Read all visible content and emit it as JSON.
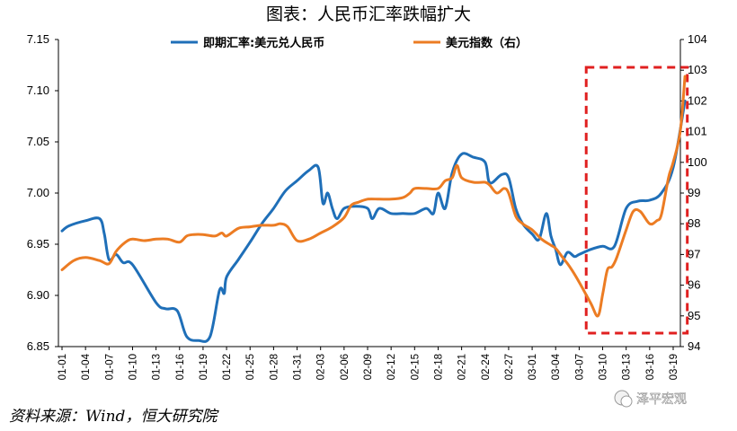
{
  "chart_data": {
    "type": "line",
    "title": "图表：人民币汇率跌幅扩大",
    "source": "资料来源：Wind，恒大研究院",
    "watermark": "泽平宏观",
    "x_labels": [
      "01-01",
      "01-04",
      "01-07",
      "01-10",
      "01-13",
      "01-16",
      "01-19",
      "01-22",
      "01-25",
      "01-28",
      "01-31",
      "02-03",
      "02-06",
      "02-09",
      "02-12",
      "02-15",
      "02-18",
      "02-21",
      "02-24",
      "02-27",
      "03-01",
      "03-04",
      "03-07",
      "03-10",
      "03-13",
      "03-16",
      "03-19"
    ],
    "y_left": {
      "min": 6.85,
      "max": 7.15,
      "ticks": [
        "6.85",
        "6.90",
        "6.95",
        "7.00",
        "7.05",
        "7.10",
        "7.15"
      ]
    },
    "y_right": {
      "min": 94,
      "max": 104,
      "ticks": [
        "94",
        "95",
        "96",
        "97",
        "98",
        "99",
        "100",
        "101",
        "102",
        "103",
        "104"
      ]
    },
    "series": [
      {
        "name": "即期汇率:美元兑人民币",
        "axis": "left",
        "color": "#1f6fb8",
        "points": [
          [
            0,
            6.963
          ],
          [
            0.3,
            6.968
          ],
          [
            1,
            6.973
          ],
          [
            1.6,
            6.975
          ],
          [
            1.8,
            6.96
          ],
          [
            2,
            6.935
          ],
          [
            2.3,
            6.94
          ],
          [
            2.6,
            6.932
          ],
          [
            3,
            6.93
          ],
          [
            4,
            6.893
          ],
          [
            4.4,
            6.887
          ],
          [
            4.9,
            6.885
          ],
          [
            5.3,
            6.86
          ],
          [
            5.8,
            6.856
          ],
          [
            6.3,
            6.86
          ],
          [
            6.7,
            6.905
          ],
          [
            6.9,
            6.902
          ],
          [
            7,
            6.918
          ],
          [
            7.5,
            6.935
          ],
          [
            8,
            6.952
          ],
          [
            8.5,
            6.97
          ],
          [
            9,
            6.985
          ],
          [
            9.5,
            7.002
          ],
          [
            10,
            7.012
          ],
          [
            10.5,
            7.022
          ],
          [
            10.9,
            7.025
          ],
          [
            11.1,
            6.99
          ],
          [
            11.3,
            7.0
          ],
          [
            11.5,
            6.985
          ],
          [
            11.7,
            6.975
          ],
          [
            12,
            6.985
          ],
          [
            12.5,
            6.987
          ],
          [
            13,
            6.985
          ],
          [
            13.2,
            6.975
          ],
          [
            13.5,
            6.985
          ],
          [
            14,
            6.98
          ],
          [
            14.5,
            6.98
          ],
          [
            15,
            6.98
          ],
          [
            15.5,
            6.985
          ],
          [
            15.8,
            6.98
          ],
          [
            16,
            7.0
          ],
          [
            16.3,
            6.985
          ],
          [
            16.6,
            7.02
          ],
          [
            17,
            7.038
          ],
          [
            17.5,
            7.035
          ],
          [
            18,
            7.03
          ],
          [
            18.2,
            7.01
          ],
          [
            18.7,
            7.018
          ],
          [
            19,
            7.015
          ],
          [
            19.3,
            6.985
          ],
          [
            19.6,
            6.97
          ],
          [
            20,
            6.96
          ],
          [
            20.3,
            6.955
          ],
          [
            20.6,
            6.98
          ],
          [
            20.8,
            6.958
          ],
          [
            21,
            6.945
          ],
          [
            21.2,
            6.93
          ],
          [
            21.5,
            6.942
          ],
          [
            21.8,
            6.938
          ],
          [
            22,
            6.94
          ],
          [
            22.5,
            6.945
          ],
          [
            23,
            6.948
          ],
          [
            23.5,
            6.948
          ],
          [
            24,
            6.985
          ],
          [
            24.5,
            6.992
          ],
          [
            25,
            6.993
          ],
          [
            25.5,
            7.0
          ],
          [
            26,
            7.025
          ],
          [
            26.5,
            7.09
          ]
        ]
      },
      {
        "name": "美元指数（右）",
        "axis": "right",
        "color": "#ec7c23",
        "points": [
          [
            0,
            96.5
          ],
          [
            0.5,
            96.8
          ],
          [
            1,
            96.9
          ],
          [
            1.6,
            96.8
          ],
          [
            2,
            96.7
          ],
          [
            2.3,
            97.1
          ],
          [
            2.7,
            97.4
          ],
          [
            3,
            97.5
          ],
          [
            3.5,
            97.45
          ],
          [
            4,
            97.5
          ],
          [
            4.5,
            97.5
          ],
          [
            5,
            97.4
          ],
          [
            5.3,
            97.6
          ],
          [
            5.6,
            97.65
          ],
          [
            6,
            97.65
          ],
          [
            6.5,
            97.6
          ],
          [
            6.8,
            97.7
          ],
          [
            7,
            97.6
          ],
          [
            7.5,
            97.85
          ],
          [
            8,
            97.9
          ],
          [
            8.5,
            97.95
          ],
          [
            9,
            97.95
          ],
          [
            9.3,
            98.0
          ],
          [
            9.6,
            97.9
          ],
          [
            10,
            97.45
          ],
          [
            10.5,
            97.5
          ],
          [
            11,
            97.7
          ],
          [
            11.5,
            97.9
          ],
          [
            12,
            98.2
          ],
          [
            12.3,
            98.6
          ],
          [
            12.6,
            98.7
          ],
          [
            13,
            98.8
          ],
          [
            13.5,
            98.8
          ],
          [
            14,
            98.8
          ],
          [
            14.5,
            98.85
          ],
          [
            14.8,
            99.0
          ],
          [
            15,
            99.15
          ],
          [
            15.5,
            99.15
          ],
          [
            16,
            99.15
          ],
          [
            16.3,
            99.4
          ],
          [
            16.6,
            99.5
          ],
          [
            16.8,
            99.9
          ],
          [
            17,
            99.5
          ],
          [
            17.5,
            99.35
          ],
          [
            18,
            99.35
          ],
          [
            18.2,
            99.25
          ],
          [
            18.5,
            99.0
          ],
          [
            18.8,
            99.15
          ],
          [
            19,
            99.0
          ],
          [
            19.3,
            98.25
          ],
          [
            19.6,
            98.0
          ],
          [
            20,
            97.8
          ],
          [
            20.4,
            97.5
          ],
          [
            20.8,
            97.3
          ],
          [
            21,
            97.2
          ],
          [
            21.3,
            96.9
          ],
          [
            21.6,
            96.6
          ],
          [
            22,
            96.1
          ],
          [
            22.5,
            95.4
          ],
          [
            22.8,
            95.0
          ],
          [
            23,
            95.7
          ],
          [
            23.2,
            96.5
          ],
          [
            23.4,
            96.6
          ],
          [
            23.6,
            96.9
          ],
          [
            24,
            97.8
          ],
          [
            24.3,
            98.4
          ],
          [
            24.6,
            98.4
          ],
          [
            25,
            98.0
          ],
          [
            25.3,
            98.1
          ],
          [
            25.5,
            98.3
          ],
          [
            25.8,
            99.5
          ],
          [
            26,
            100.0
          ],
          [
            26.3,
            101.0
          ],
          [
            26.5,
            102.8
          ]
        ]
      }
    ],
    "highlight": {
      "x_from": 22.3,
      "x_to": 26.6,
      "color": "#e02020",
      "style": "dashed"
    }
  }
}
